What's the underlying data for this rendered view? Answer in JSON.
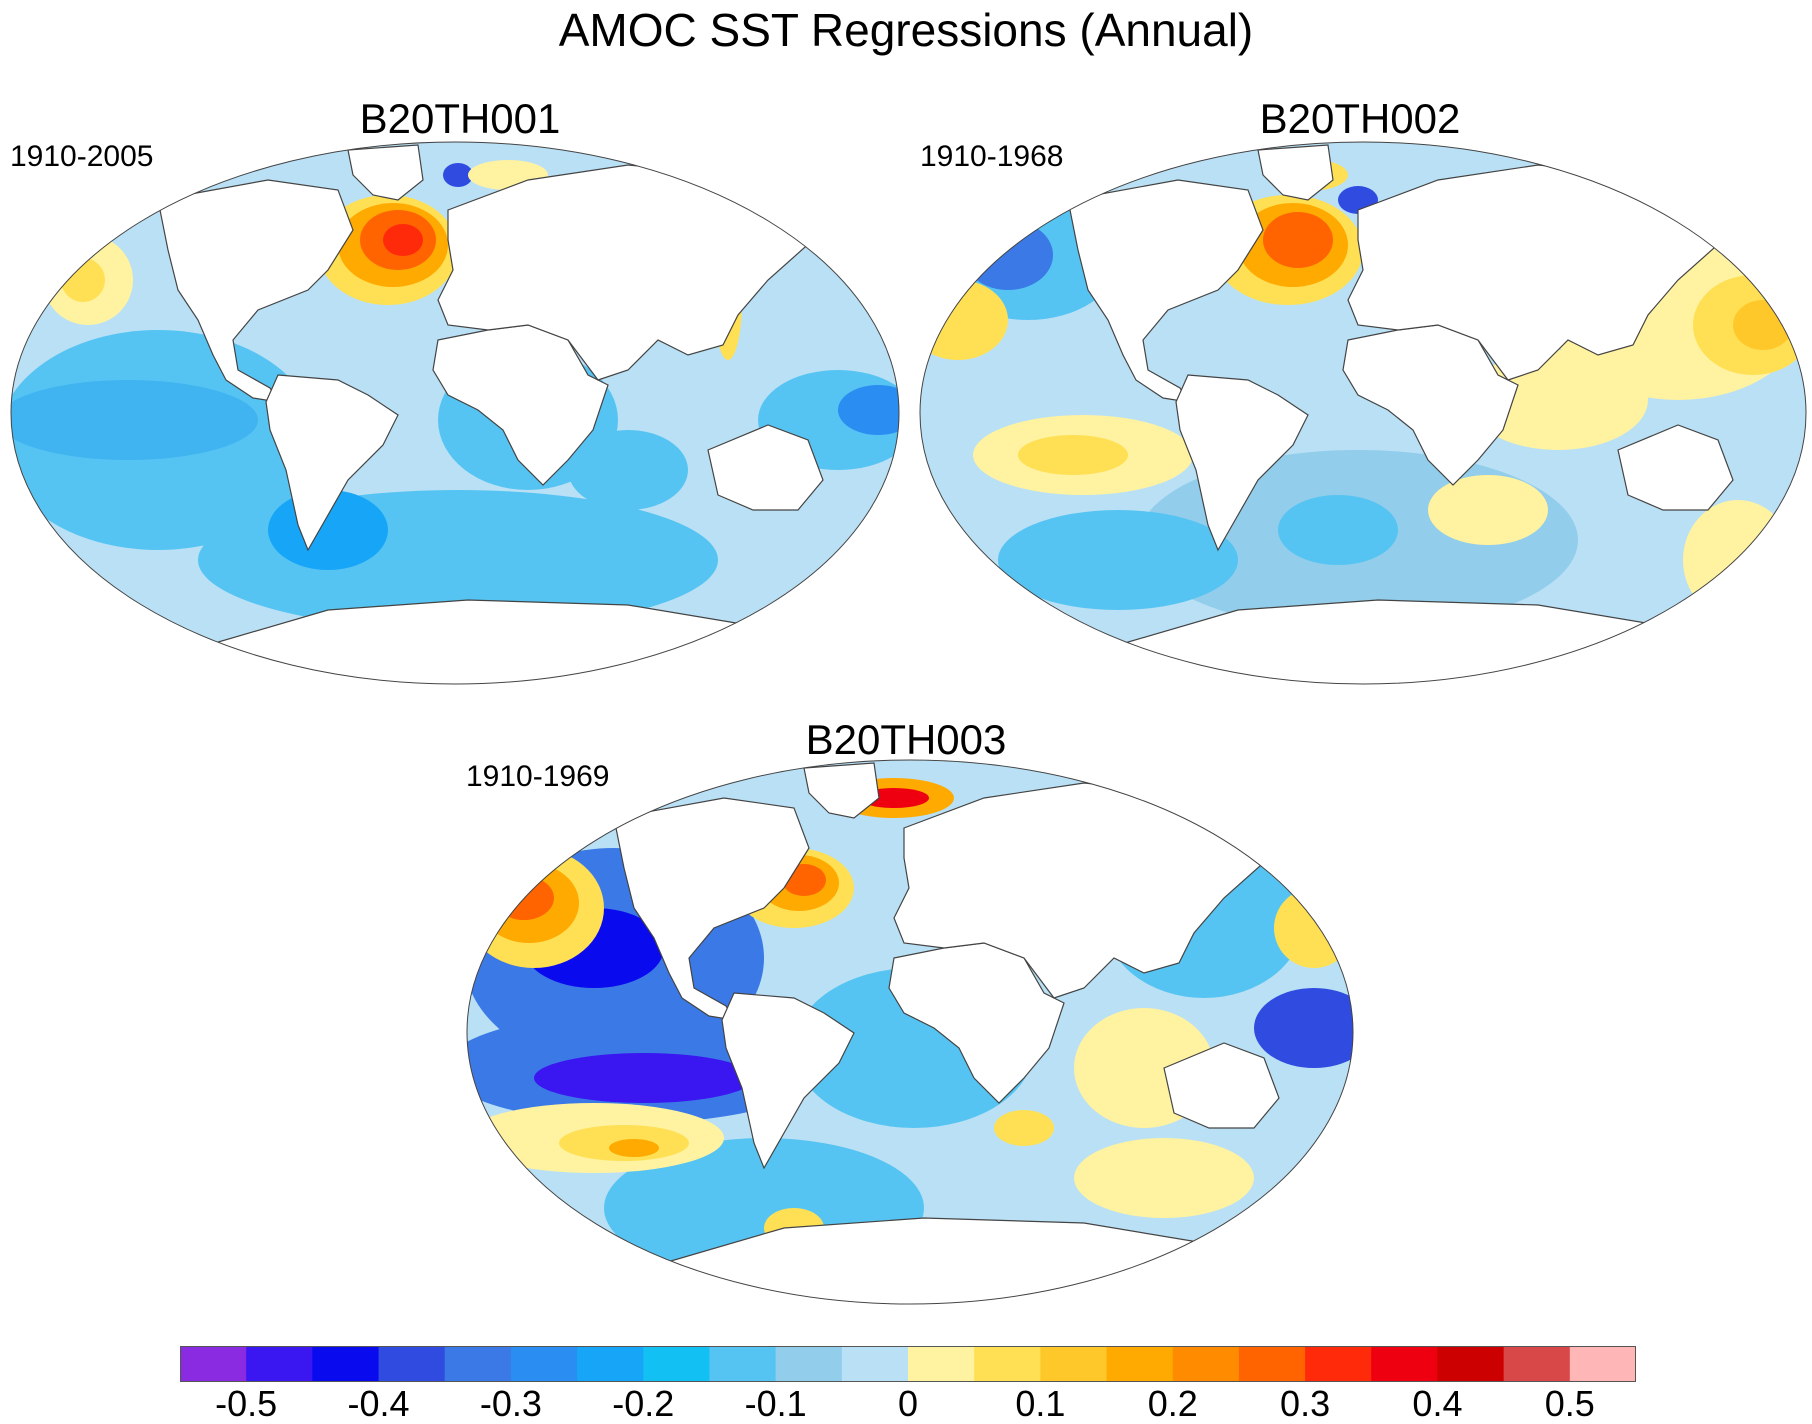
{
  "title": "AMOC SST Regressions (Annual)",
  "panels": [
    {
      "name": "B20TH001",
      "period": "1910-2005"
    },
    {
      "name": "B20TH002",
      "period": "1910-1968"
    },
    {
      "name": "B20TH003",
      "period": "1910-1969"
    }
  ],
  "colorbar": {
    "colors": [
      "#8a2be2",
      "#3a16f0",
      "#0a0aee",
      "#2f4be0",
      "#3b79e6",
      "#2a8df2",
      "#17a6f7",
      "#12c0f4",
      "#56c4f2",
      "#92cdeb",
      "#b9e0f5",
      "#fff2a0",
      "#ffe054",
      "#ffc82a",
      "#ffaa00",
      "#ff8c00",
      "#ff6400",
      "#ff2a0a",
      "#ee0010",
      "#cc0000",
      "#d84848",
      "#ffb6b6"
    ],
    "labels": [
      "-0.5",
      "-0.4",
      "-0.3",
      "-0.2",
      "-0.1",
      "0",
      "0.1",
      "0.2",
      "0.3",
      "0.4",
      "0.5"
    ]
  },
  "colors": {
    "ocean_background": "#b9e0f5",
    "land": "#ffffff",
    "coastline": "#444444"
  }
}
